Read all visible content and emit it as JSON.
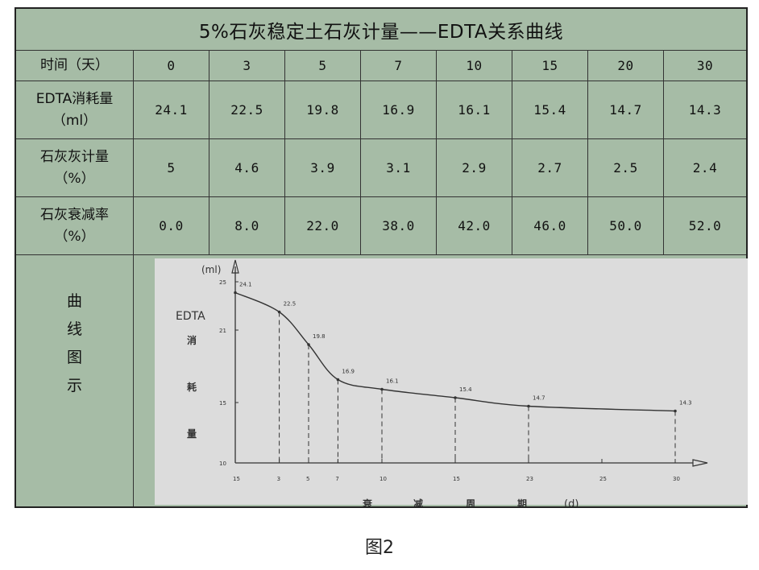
{
  "table": {
    "title": "5%石灰稳定土石灰计量——EDTA关系曲线",
    "row_labels": {
      "time": "时间（天）",
      "edta": [
        "EDTA消耗量",
        "（ml）"
      ],
      "lime": [
        "石灰灰计量",
        "（%）"
      ],
      "decay": [
        "石灰衰减率",
        "（%）"
      ]
    },
    "days": [
      "0",
      "3",
      "5",
      "7",
      "10",
      "15",
      "20",
      "30"
    ],
    "edta_values": [
      "24.1",
      "22.5",
      "19.8",
      "16.9",
      "16.1",
      "15.4",
      "14.7",
      "14.3"
    ],
    "lime_values": [
      "5",
      "4.6",
      "3.9",
      "3.1",
      "2.9",
      "2.7",
      "2.5",
      "2.4"
    ],
    "decay_values": [
      "0.0",
      "8.0",
      "22.0",
      "38.0",
      "42.0",
      "46.0",
      "50.0",
      "52.0"
    ],
    "curve_label": [
      "曲",
      "线",
      "图",
      "示"
    ]
  },
  "chart_data": {
    "type": "line",
    "ylabel": [
      "EDTA",
      "消",
      "耗",
      "量"
    ],
    "y_unit": "(ml)",
    "xlabel": [
      "衰",
      "减",
      "周",
      "期"
    ],
    "x_unit": "(d)",
    "x_tick_labels": [
      "15",
      "3",
      "5",
      "7",
      "10",
      "15",
      "23",
      "25",
      "30"
    ],
    "y_tick_labels": [
      "25",
      "21",
      "15",
      "10"
    ],
    "series": [
      {
        "x": [
          0,
          3,
          5,
          7,
          10,
          15,
          20,
          30
        ],
        "y": [
          24.1,
          22.5,
          19.8,
          16.9,
          16.1,
          15.4,
          14.7,
          14.3
        ],
        "point_labels": [
          "24.1",
          "22.5",
          "19.8",
          "16.9",
          "16.1",
          "15.4",
          "14.7",
          "14.3"
        ]
      }
    ],
    "grid": false,
    "line_color": "#333333"
  },
  "caption": "图2"
}
